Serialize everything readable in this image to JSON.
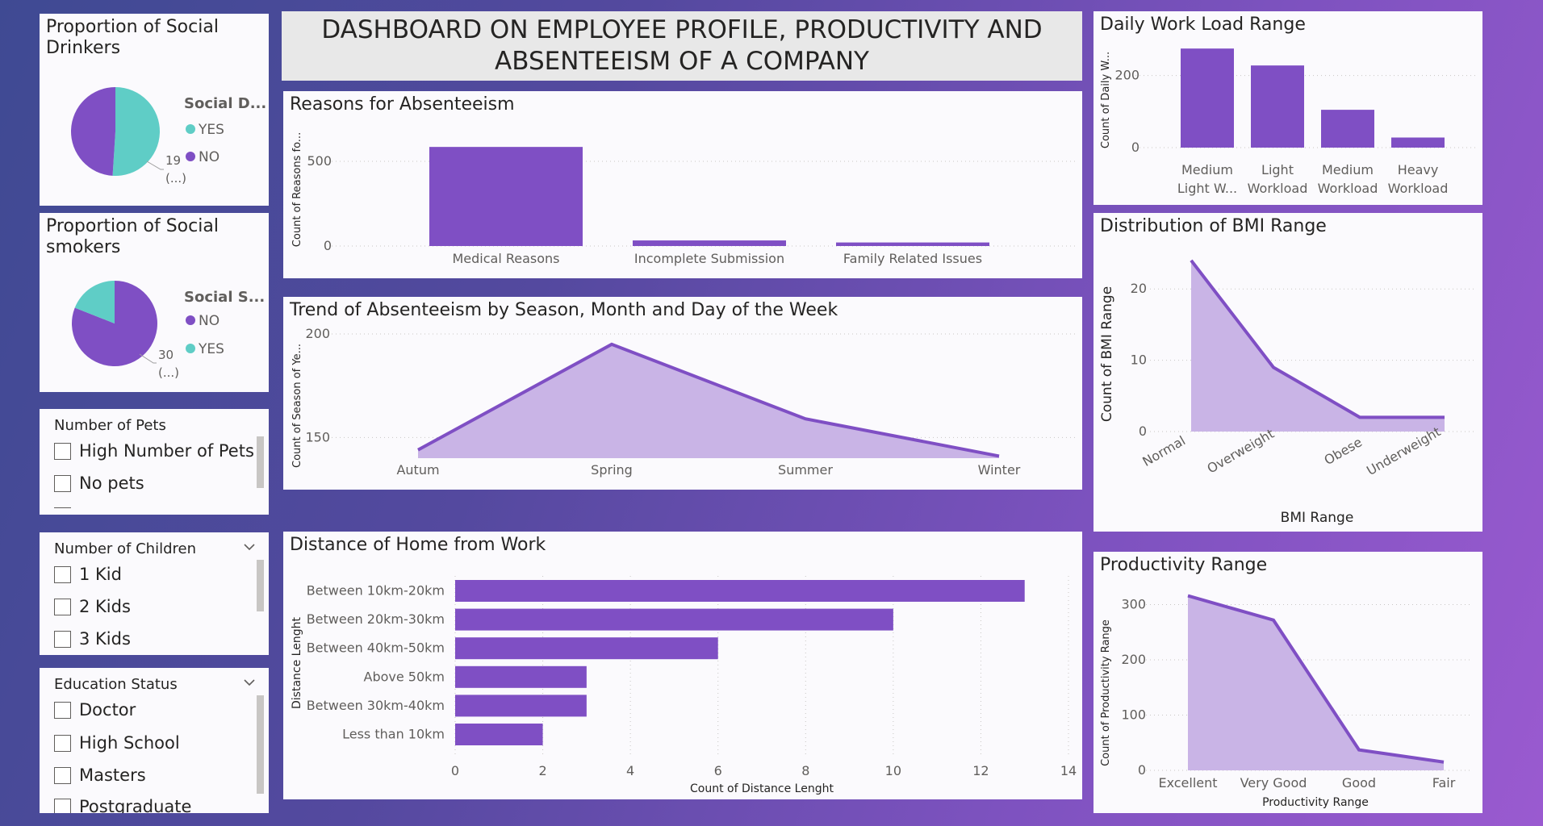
{
  "header": {
    "title": "DASHBOARD ON EMPLOYEE PROFILE, PRODUCTIVITY AND ABSENTEEISM OF A COMPANY"
  },
  "colors": {
    "purple": "#7f4fc4",
    "teal": "#5fcdc6",
    "area": "#c9b4e6",
    "card": "#fbfafd"
  },
  "social_drinkers": {
    "title": "Proportion of Social Drinkers",
    "legend_title": "Social D...",
    "legend": [
      "YES",
      "NO"
    ],
    "data_label": [
      "19",
      "(...)"
    ]
  },
  "social_smokers": {
    "title": "Proportion of Social smokers",
    "legend_title": "Social S...",
    "legend": [
      "NO",
      "YES"
    ],
    "data_label": [
      "30",
      "(...)"
    ]
  },
  "pets": {
    "title": "Number of Pets",
    "items": [
      "High Number of Pets",
      "No pets"
    ]
  },
  "children": {
    "title": "Number of Children",
    "items": [
      "1 Kid",
      "2 Kids",
      "3 Kids"
    ]
  },
  "education": {
    "title": "Education Status",
    "items": [
      "Doctor",
      "High School",
      "Masters",
      "Postgraduate"
    ]
  },
  "reasons": {
    "title": "Reasons for Absenteeism",
    "ylabel": "Count of Reasons fo...",
    "yticks": [
      "0",
      "500"
    ]
  },
  "trend": {
    "title": "Trend of Absenteeism by Season, Month and Day of the Week",
    "ylabel": "Count of Season of Ye...",
    "yticks": [
      "150",
      "200"
    ]
  },
  "distance": {
    "title": "Distance of Home from Work",
    "ylabel": "Distance Lenght",
    "xlabel": "Count of Distance Lenght",
    "xticks": [
      "0",
      "2",
      "4",
      "6",
      "8",
      "10",
      "12",
      "14"
    ]
  },
  "workload": {
    "title": "Daily Work Load Range",
    "ylabel": "Count of Daily W...",
    "yticks": [
      "0",
      "200"
    ]
  },
  "bmi": {
    "title": "Distribution of BMI Range",
    "ylabel": "Count of BMI Range",
    "xlabel": "BMI Range",
    "yticks": [
      "0",
      "10",
      "20"
    ]
  },
  "productivity": {
    "title": "Productivity Range",
    "ylabel": "Count of Productivity Range",
    "xlabel": "Productivity Range",
    "yticks": [
      "0",
      "100",
      "200",
      "300"
    ]
  },
  "chart_data": [
    {
      "id": "social_drinkers",
      "type": "pie",
      "categories": [
        "YES",
        "NO"
      ],
      "values": [
        51,
        49
      ]
    },
    {
      "id": "social_smokers",
      "type": "pie",
      "categories": [
        "NO",
        "YES"
      ],
      "values": [
        81,
        19
      ]
    },
    {
      "id": "reasons",
      "type": "bar",
      "categories": [
        "Medical Reasons",
        "Incomplete Submission",
        "Family Related Issues"
      ],
      "values": [
        585,
        33,
        21
      ],
      "ylim": [
        0,
        700
      ]
    },
    {
      "id": "trend",
      "type": "area",
      "categories": [
        "Autum",
        "Spring",
        "Summer",
        "Winter"
      ],
      "values": [
        144,
        195,
        159,
        141
      ],
      "ylim": [
        140,
        200
      ]
    },
    {
      "id": "distance",
      "type": "bar",
      "orientation": "horizontal",
      "categories": [
        "Between 10km-20km",
        "Between 20km-30km",
        "Between 40km-50km",
        "Above 50km",
        "Between 30km-40km",
        "Less than 10km"
      ],
      "values": [
        13,
        10,
        6,
        3,
        3,
        2
      ],
      "xlim": [
        0,
        14
      ]
    },
    {
      "id": "workload",
      "type": "bar",
      "categories": [
        [
          "Medium",
          "Light W..."
        ],
        [
          "Light",
          "Workload"
        ],
        [
          "Medium",
          "Workload"
        ],
        [
          "Heavy",
          "Workload"
        ]
      ],
      "values": [
        275,
        228,
        105,
        28
      ],
      "ylim": [
        0,
        300
      ]
    },
    {
      "id": "bmi",
      "type": "area",
      "categories": [
        "Normal",
        "Overweight",
        "Obese",
        "Underweight"
      ],
      "values": [
        24,
        9,
        2,
        2
      ],
      "ylim": [
        0,
        25
      ]
    },
    {
      "id": "productivity",
      "type": "area",
      "categories": [
        "Excellent",
        "Very Good",
        "Good",
        "Fair"
      ],
      "values": [
        316,
        272,
        37,
        15
      ],
      "ylim": [
        0,
        330
      ]
    }
  ]
}
